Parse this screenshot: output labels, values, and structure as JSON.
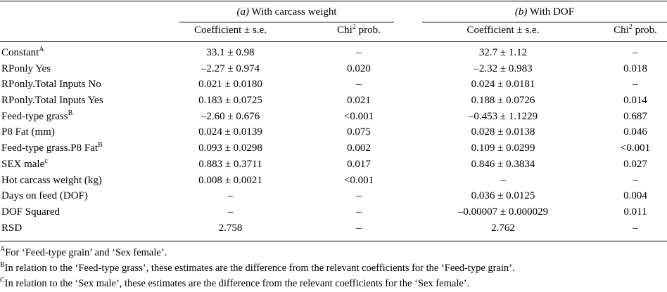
{
  "header": {
    "group_a_prefix": "(a)",
    "group_a_label": " With carcass weight",
    "group_b_prefix": "(b)",
    "group_b_label": " With DOF",
    "coef_label": "Coefficient ± s.e.",
    "chi_label": "Chi",
    "chi_sup": "2",
    "chi_suffix": " prob."
  },
  "rows": [
    {
      "label": "Constant",
      "sup": "A",
      "a_coef": "33.1 ± 0.98",
      "a_chi": "–",
      "b_coef": "32.7 ± 1.12",
      "b_chi": "–"
    },
    {
      "label": "RPonly Yes",
      "sup": "",
      "a_coef": "–2.27 ± 0.974",
      "a_chi": "0.020",
      "b_coef": "–2.32 ± 0.983",
      "b_chi": "0.018"
    },
    {
      "label": "RPonly.Total Inputs No",
      "sup": "",
      "a_coef": "0.021 ± 0.0180",
      "a_chi": "–",
      "b_coef": "0.024 ± 0.0181",
      "b_chi": "–"
    },
    {
      "label": "RPonly.Total Inputs Yes",
      "sup": "",
      "a_coef": "0.183 ± 0.0725",
      "a_chi": "0.021",
      "b_coef": "0.188 ± 0.0726",
      "b_chi": "0.014"
    },
    {
      "label": "Feed-type grass",
      "sup": "B",
      "a_coef": "–2.60 ± 0.676",
      "a_chi": "<0.001",
      "b_coef": "–0.453 ± 1.1229",
      "b_chi": "0.687"
    },
    {
      "label": "P8 Fat (mm)",
      "sup": "",
      "a_coef": "0.024 ± 0.0139",
      "a_chi": "0.075",
      "b_coef": "0.028 ± 0.0138",
      "b_chi": "0.046"
    },
    {
      "label": "Feed-type grass.P8 Fat",
      "sup": "B",
      "a_coef": "0.093 ± 0.0298",
      "a_chi": "0.002",
      "b_coef": "0.109 ± 0.0299",
      "b_chi": "<0.001"
    },
    {
      "label": "SEX male",
      "sup": "c",
      "a_coef": "0.883 ± 0.3711",
      "a_chi": "0.017",
      "b_coef": "0.846 ± 0.3834",
      "b_chi": "0.027"
    },
    {
      "label": "Hot carcass weight (kg)",
      "sup": "",
      "a_coef": "0.008 ± 0.0021",
      "a_chi": "<0.001",
      "b_coef": "–",
      "b_chi": "–"
    },
    {
      "label": "Days on feed (DOF)",
      "sup": "",
      "a_coef": "–",
      "a_chi": "–",
      "b_coef": "0.036 ± 0.0125",
      "b_chi": "0.004"
    },
    {
      "label": "DOF Squared",
      "sup": "",
      "a_coef": "–",
      "a_chi": "–",
      "b_coef": "–0.00007 ± 0.000029",
      "b_chi": "0.011"
    },
    {
      "label": "RSD",
      "sup": "",
      "a_coef": "2.758",
      "a_chi": "–",
      "b_coef": "2.762",
      "b_chi": "–"
    }
  ],
  "footnotes": [
    {
      "mark": "A",
      "text": "For ‘Feed-type grain’ and ‘Sex female’."
    },
    {
      "mark": "B",
      "text": "In relation to the ‘Feed-type grass’, these estimates are the difference from the relevant coefficients for the ‘Feed-type grain’."
    },
    {
      "mark": "C",
      "text": "In relation to the ‘Sex male’, these estimates are the difference from the relevant coefficients for the ‘Sex female’."
    }
  ]
}
